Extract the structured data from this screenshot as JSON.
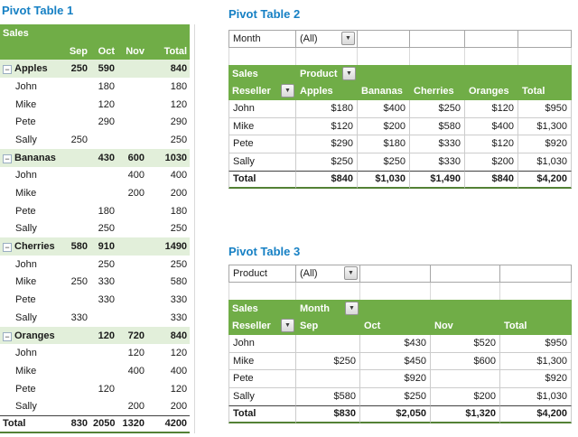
{
  "icons": {
    "dropdown_arrow": "▼",
    "collapse_minus": "−"
  },
  "colors": {
    "header_green": "#70AD47",
    "band_green": "#E2EFDA",
    "total_border_green": "#538135",
    "title_blue": "#1680C4"
  },
  "pivot1": {
    "title": "Pivot Table 1",
    "header_label": "Sales",
    "columns": [
      "Sep",
      "Oct",
      "Nov",
      "Total"
    ],
    "rows": [
      {
        "label": "Apples",
        "type": "group",
        "values": [
          "250",
          "590",
          "",
          "840"
        ]
      },
      {
        "label": "John",
        "type": "detail",
        "values": [
          "",
          "180",
          "",
          "180"
        ]
      },
      {
        "label": "Mike",
        "type": "detail",
        "values": [
          "",
          "120",
          "",
          "120"
        ]
      },
      {
        "label": "Pete",
        "type": "detail",
        "values": [
          "",
          "290",
          "",
          "290"
        ]
      },
      {
        "label": "Sally",
        "type": "detail",
        "values": [
          "250",
          "",
          "",
          "250"
        ]
      },
      {
        "label": "Bananas",
        "type": "group",
        "values": [
          "",
          "430",
          "600",
          "1030"
        ]
      },
      {
        "label": "John",
        "type": "detail",
        "values": [
          "",
          "",
          "400",
          "400"
        ]
      },
      {
        "label": "Mike",
        "type": "detail",
        "values": [
          "",
          "",
          "200",
          "200"
        ]
      },
      {
        "label": "Pete",
        "type": "detail",
        "values": [
          "",
          "180",
          "",
          "180"
        ]
      },
      {
        "label": "Sally",
        "type": "detail",
        "values": [
          "",
          "250",
          "",
          "250"
        ]
      },
      {
        "label": "Cherries",
        "type": "group",
        "values": [
          "580",
          "910",
          "",
          "1490"
        ]
      },
      {
        "label": "John",
        "type": "detail",
        "values": [
          "",
          "250",
          "",
          "250"
        ]
      },
      {
        "label": "Mike",
        "type": "detail",
        "values": [
          "250",
          "330",
          "",
          "580"
        ]
      },
      {
        "label": "Pete",
        "type": "detail",
        "values": [
          "",
          "330",
          "",
          "330"
        ]
      },
      {
        "label": "Sally",
        "type": "detail",
        "values": [
          "330",
          "",
          "",
          "330"
        ]
      },
      {
        "label": "Oranges",
        "type": "group",
        "values": [
          "",
          "120",
          "720",
          "840"
        ]
      },
      {
        "label": "John",
        "type": "detail",
        "values": [
          "",
          "",
          "120",
          "120"
        ]
      },
      {
        "label": "Mike",
        "type": "detail",
        "values": [
          "",
          "",
          "400",
          "400"
        ]
      },
      {
        "label": "Pete",
        "type": "detail",
        "values": [
          "",
          "120",
          "",
          "120"
        ]
      },
      {
        "label": "Sally",
        "type": "detail",
        "values": [
          "",
          "",
          "200",
          "200"
        ]
      },
      {
        "label": "Total",
        "type": "total",
        "values": [
          "830",
          "2050",
          "1320",
          "4200"
        ]
      }
    ]
  },
  "pivot2": {
    "title": "Pivot Table 2",
    "filter": {
      "label": "Month",
      "value": "(All)"
    },
    "corner_top": "Sales",
    "row_field": "Reseller",
    "column_field": "Product",
    "columns": [
      "Apples",
      "Bananas",
      "Cherries",
      "Oranges",
      "Total"
    ],
    "rows": [
      {
        "label": "John",
        "type": "data",
        "values": [
          "$180",
          "$400",
          "$250",
          "$120",
          "$950"
        ]
      },
      {
        "label": "Mike",
        "type": "data",
        "values": [
          "$120",
          "$200",
          "$580",
          "$400",
          "$1,300"
        ]
      },
      {
        "label": "Pete",
        "type": "data",
        "values": [
          "$290",
          "$180",
          "$330",
          "$120",
          "$920"
        ]
      },
      {
        "label": "Sally",
        "type": "data",
        "values": [
          "$250",
          "$250",
          "$330",
          "$200",
          "$1,030"
        ]
      },
      {
        "label": "Total",
        "type": "total",
        "values": [
          "$840",
          "$1,030",
          "$1,490",
          "$840",
          "$4,200"
        ]
      }
    ]
  },
  "pivot3": {
    "title": "Pivot Table 3",
    "filter": {
      "label": "Product",
      "value": "(All)"
    },
    "corner_top": "Sales",
    "row_field": "Reseller",
    "column_field": "Month",
    "columns": [
      "Sep",
      "Oct",
      "Nov",
      "Total"
    ],
    "rows": [
      {
        "label": "John",
        "type": "data",
        "values": [
          "",
          "$430",
          "$520",
          "$950"
        ]
      },
      {
        "label": "Mike",
        "type": "data",
        "values": [
          "$250",
          "$450",
          "$600",
          "$1,300"
        ]
      },
      {
        "label": "Pete",
        "type": "data",
        "values": [
          "",
          "$920",
          "",
          "$920"
        ]
      },
      {
        "label": "Sally",
        "type": "data",
        "values": [
          "$580",
          "$250",
          "$200",
          "$1,030"
        ]
      },
      {
        "label": "Total",
        "type": "total",
        "values": [
          "$830",
          "$2,050",
          "$1,320",
          "$4,200"
        ]
      }
    ]
  }
}
